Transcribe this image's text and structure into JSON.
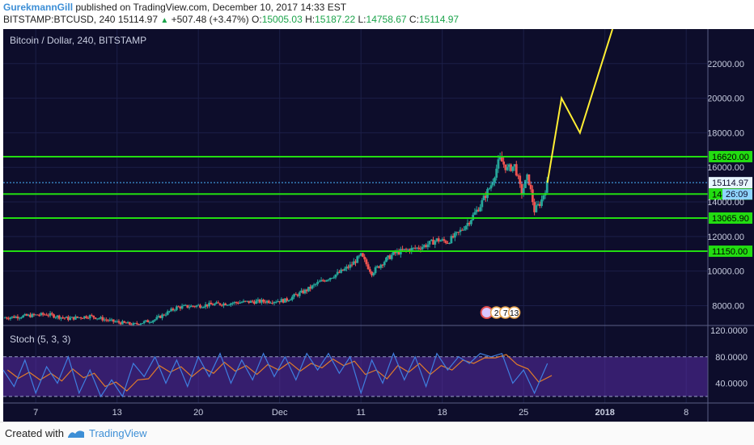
{
  "header": {
    "user": "GurekmannGill",
    "published": "published on TradingView.com, December 10, 2017 14:33 EST",
    "symbol": "BITSTAMP:BTCUSD, 240",
    "last": "15114.97",
    "change": "+507.48 (+3.47%)",
    "o_label": "O:",
    "o_value": "15005.03",
    "h_label": "H:",
    "h_value": "15187.22",
    "l_label": "L:",
    "l_value": "14758.67",
    "c_label": "C:",
    "c_value": "15114.97"
  },
  "chart_title": "Bitcoin / Dollar, 240, BITSTAMP",
  "indicator_label": "Stoch (5, 3, 3)",
  "footer": {
    "created": "Created with",
    "brand": "TradingView"
  },
  "colors": {
    "background": "#0d0d2b",
    "up": "#26a69a",
    "down": "#ef5350",
    "level_line": "#22dd11",
    "projection": "#ffee33",
    "stoch_k": "#3f7fe0",
    "stoch_d": "#e07b2a",
    "stoch_band": "#5a2ea6"
  },
  "chart_data": {
    "type": "candlestick",
    "title": "Bitcoin / Dollar, 240, BITSTAMP",
    "price_axis": {
      "ticks": [
        8000,
        10000,
        12000,
        14000,
        16000,
        18000,
        20000,
        22000
      ],
      "tick_labels": [
        "8000.00",
        "10000.00",
        "12000.00",
        "14000.00",
        "16000.00",
        "18000.00",
        "20000.00",
        "22000.00"
      ],
      "range": [
        6900,
        24000
      ]
    },
    "time_axis": {
      "labels": [
        "7",
        "13",
        "20",
        "Dec",
        "11",
        "18",
        "25",
        "2018",
        "8"
      ],
      "range_days": [
        0,
        65
      ]
    },
    "price_path": [
      [
        0,
        7300
      ],
      [
        4,
        7500
      ],
      [
        6,
        7250
      ],
      [
        8,
        7400
      ],
      [
        10,
        7100
      ],
      [
        12,
        6900
      ],
      [
        14,
        7200
      ],
      [
        16,
        7900
      ],
      [
        18,
        8000
      ],
      [
        20,
        8100
      ],
      [
        22,
        8200
      ],
      [
        24,
        8250
      ],
      [
        26,
        8300
      ],
      [
        28,
        8900
      ],
      [
        29,
        9300
      ],
      [
        30,
        9600
      ],
      [
        31,
        9900
      ],
      [
        32,
        10300
      ],
      [
        33,
        10900
      ],
      [
        34,
        9900
      ],
      [
        35,
        10500
      ],
      [
        36,
        11000
      ],
      [
        37,
        11200
      ],
      [
        38,
        11300
      ],
      [
        39,
        11500
      ],
      [
        40,
        11800
      ],
      [
        41,
        11700
      ],
      [
        42,
        12200
      ],
      [
        43,
        12900
      ],
      [
        44,
        13800
      ],
      [
        45,
        15000
      ],
      [
        45.8,
        16500
      ],
      [
        46.5,
        15900
      ],
      [
        47.2,
        16100
      ],
      [
        47.8,
        14500
      ],
      [
        48.4,
        15500
      ],
      [
        49,
        13500
      ],
      [
        49.6,
        14000
      ],
      [
        50.2,
        15115
      ]
    ],
    "levels": [
      {
        "value": 16620,
        "label": "16620.00"
      },
      {
        "value": 14454.98,
        "label": "14454.98"
      },
      {
        "value": 13065.9,
        "label": "13065.90"
      },
      {
        "value": 11150,
        "label": "11150.00"
      }
    ],
    "last_price": {
      "value": 15114.97,
      "label": "15114.97"
    },
    "countdown_label": "26:09",
    "projection": [
      [
        50.2,
        15115
      ],
      [
        51.5,
        20000
      ],
      [
        53.2,
        18000
      ],
      [
        56.2,
        24000
      ]
    ],
    "event_badges": [
      "2",
      "7",
      "13"
    ],
    "stochastic": {
      "title": "Stoch (5, 3, 3)",
      "ticks": [
        40,
        80,
        120
      ],
      "tick_labels": [
        "40.0000",
        "80.0000",
        "120.0000"
      ],
      "range": [
        10,
        125
      ],
      "upper_band": 80,
      "lower_band": 20,
      "k_path": [
        [
          0,
          60
        ],
        [
          1,
          35
        ],
        [
          2,
          75
        ],
        [
          3,
          25
        ],
        [
          4,
          65
        ],
        [
          5,
          40
        ],
        [
          6,
          80
        ],
        [
          7,
          25
        ],
        [
          8,
          60
        ],
        [
          9,
          20
        ],
        [
          10,
          45
        ],
        [
          11,
          20
        ],
        [
          12,
          70
        ],
        [
          13,
          50
        ],
        [
          14,
          80
        ],
        [
          15,
          40
        ],
        [
          16,
          75
        ],
        [
          17,
          35
        ],
        [
          18,
          80
        ],
        [
          19,
          50
        ],
        [
          20,
          85
        ],
        [
          21,
          40
        ],
        [
          22,
          75
        ],
        [
          23,
          45
        ],
        [
          24,
          85
        ],
        [
          25,
          50
        ],
        [
          26,
          80
        ],
        [
          27,
          45
        ],
        [
          28,
          85
        ],
        [
          29,
          60
        ],
        [
          30,
          85
        ],
        [
          31,
          55
        ],
        [
          32,
          80
        ],
        [
          33,
          25
        ],
        [
          34,
          75
        ],
        [
          35,
          40
        ],
        [
          36,
          85
        ],
        [
          37,
          45
        ],
        [
          38,
          80
        ],
        [
          39,
          35
        ],
        [
          40,
          85
        ],
        [
          41,
          60
        ],
        [
          42,
          80
        ],
        [
          43,
          70
        ],
        [
          44,
          85
        ],
        [
          45,
          80
        ],
        [
          46,
          85
        ],
        [
          47,
          40
        ],
        [
          48,
          60
        ],
        [
          49,
          25
        ],
        [
          50.2,
          70
        ]
      ]
    }
  }
}
